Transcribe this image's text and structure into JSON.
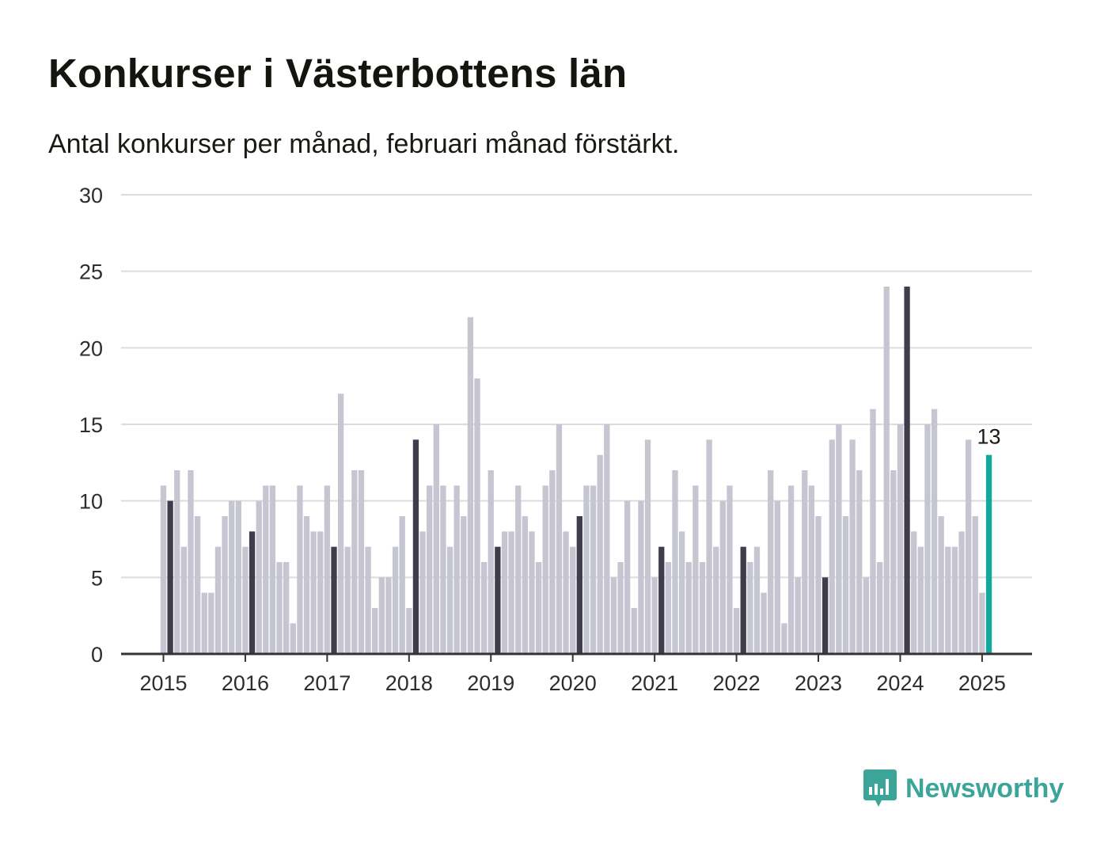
{
  "title": "Konkurser i Västerbottens län",
  "subtitle": "Antal konkurser per månad, februari månad förstärkt.",
  "brand": {
    "name": "Newsworthy",
    "color": "#3aa598"
  },
  "colors": {
    "bar": "#c6c5d2",
    "highlight": "#3f3d4c",
    "latest": "#13a89e",
    "grid": "#dcdcdc",
    "axis": "#333333"
  },
  "chart_data": {
    "type": "bar",
    "start": "2015-01",
    "highlight_month": "februari",
    "values": [
      11,
      10,
      12,
      7,
      12,
      9,
      4,
      4,
      7,
      9,
      10,
      10,
      7,
      8,
      10,
      11,
      11,
      6,
      6,
      2,
      11,
      9,
      8,
      8,
      11,
      7,
      17,
      7,
      12,
      12,
      7,
      3,
      5,
      5,
      7,
      9,
      3,
      14,
      8,
      11,
      15,
      11,
      7,
      11,
      9,
      22,
      18,
      6,
      12,
      7,
      8,
      8,
      11,
      9,
      8,
      6,
      11,
      12,
      15,
      8,
      7,
      9,
      11,
      11,
      13,
      15,
      5,
      6,
      10,
      3,
      10,
      14,
      5,
      7,
      6,
      12,
      8,
      6,
      11,
      6,
      14,
      7,
      10,
      11,
      3,
      7,
      6,
      7,
      4,
      12,
      10,
      2,
      11,
      5,
      12,
      11,
      9,
      5,
      14,
      15,
      9,
      14,
      12,
      5,
      16,
      6,
      24,
      12,
      15,
      24,
      8,
      7,
      15,
      16,
      9,
      7,
      7,
      8,
      14,
      9,
      4,
      13
    ],
    "last_label": "13",
    "ylim": [
      0,
      30
    ],
    "yticks": [
      0,
      5,
      10,
      15,
      20,
      25,
      30
    ],
    "xticks": [
      "2015",
      "2016",
      "2017",
      "2018",
      "2019",
      "2020",
      "2021",
      "2022",
      "2023",
      "2024",
      "2025"
    ],
    "grid": true,
    "legend": "none"
  }
}
